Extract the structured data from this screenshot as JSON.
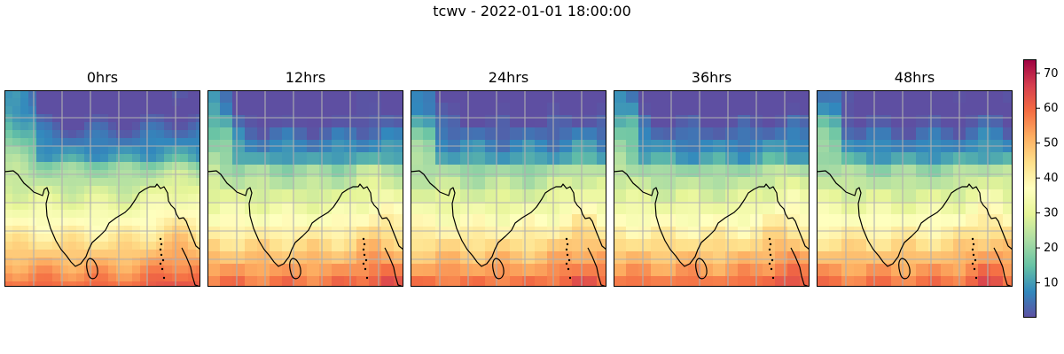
{
  "figure": {
    "suptitle": "tcwv - 2022-01-01 18:00:00"
  },
  "chart_data": {
    "type": "heatmap",
    "title": "tcwv - 2022-01-01 18:00:00",
    "panels": [
      {
        "title": "0hrs"
      },
      {
        "title": "12hrs"
      },
      {
        "title": "24hrs"
      },
      {
        "title": "36hrs"
      },
      {
        "title": "48hrs"
      }
    ],
    "grid": true,
    "colorbar": {
      "colormap": "Spectral_r",
      "range": [
        0,
        74
      ],
      "ticks": [
        10,
        20,
        30,
        40,
        50,
        60,
        70
      ],
      "colors": [
        "#5e4fa2",
        "#3288bd",
        "#66c2a5",
        "#abdda4",
        "#e6f598",
        "#ffffbf",
        "#fee08b",
        "#fdae61",
        "#f46d43",
        "#d53e4f",
        "#9e0142"
      ]
    }
  }
}
